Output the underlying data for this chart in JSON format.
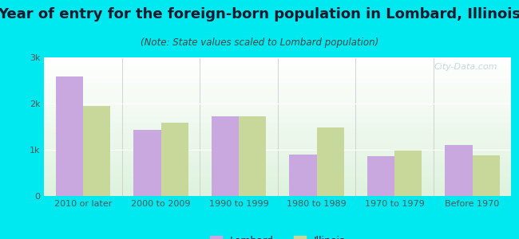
{
  "title": "Year of entry for the foreign-born population in Lombard, Illinois",
  "subtitle": "(Note: State values scaled to Lombard population)",
  "categories": [
    "2010 or later",
    "2000 to 2009",
    "1990 to 1999",
    "1980 to 1989",
    "1970 to 1979",
    "Before 1970"
  ],
  "lombard_values": [
    2580,
    1430,
    1730,
    900,
    870,
    1100
  ],
  "illinois_values": [
    1940,
    1590,
    1730,
    1490,
    980,
    880
  ],
  "lombard_color": "#c9a8e0",
  "illinois_color": "#c8d89a",
  "background_color": "#00e8f0",
  "plot_bg_top": "#ffffff",
  "plot_bg_bottom": "#d8edd8",
  "ylim": [
    0,
    3000
  ],
  "yticks": [
    0,
    1000,
    2000,
    3000
  ],
  "ytick_labels": [
    "0",
    "1k",
    "2k",
    "3k"
  ],
  "bar_width": 0.35,
  "title_fontsize": 13,
  "subtitle_fontsize": 8.5,
  "axis_fontsize": 8,
  "legend_fontsize": 9,
  "title_color": "#1a1a2e",
  "subtitle_color": "#444444",
  "tick_color": "#555555",
  "watermark": "City-Data.com"
}
